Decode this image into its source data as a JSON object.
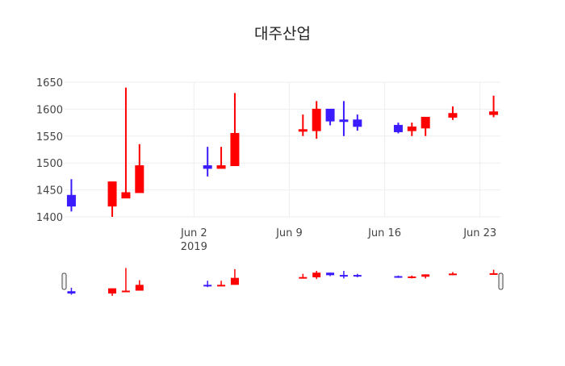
{
  "chart_data": {
    "type": "candlestick",
    "title": "대주산업",
    "colors": {
      "increasing": "#ff0000",
      "decreasing": "#3b1cff"
    },
    "x_tick_labels": [
      {
        "date": "2019-06-02",
        "label": "Jun 2",
        "sublabel": "2019"
      },
      {
        "date": "2019-06-09",
        "label": "Jun 9",
        "sublabel": ""
      },
      {
        "date": "2019-06-16",
        "label": "Jun 16",
        "sublabel": ""
      },
      {
        "date": "2019-06-23",
        "label": "Jun 23",
        "sublabel": ""
      }
    ],
    "x_range": [
      "2019-05-23T12:00",
      "2019-06-24T12:00"
    ],
    "y_range": [
      1400,
      1650
    ],
    "y_ticks": [
      1400,
      1450,
      1500,
      1550,
      1600,
      1650
    ],
    "grid": true,
    "rangeslider": true,
    "candles": [
      {
        "date": "2019-05-24",
        "open": 1440,
        "high": 1470,
        "low": 1410,
        "close": 1420
      },
      {
        "date": "2019-05-27",
        "open": 1420,
        "high": 1465,
        "low": 1400,
        "close": 1465
      },
      {
        "date": "2019-05-28",
        "open": 1435,
        "high": 1640,
        "low": 1435,
        "close": 1445
      },
      {
        "date": "2019-05-29",
        "open": 1445,
        "high": 1535,
        "low": 1445,
        "close": 1495
      },
      {
        "date": "2019-06-03",
        "open": 1495,
        "high": 1530,
        "low": 1475,
        "close": 1490
      },
      {
        "date": "2019-06-04",
        "open": 1490,
        "high": 1530,
        "low": 1490,
        "close": 1495
      },
      {
        "date": "2019-06-05",
        "open": 1495,
        "high": 1630,
        "low": 1495,
        "close": 1555
      },
      {
        "date": "2019-06-10",
        "open": 1560,
        "high": 1590,
        "low": 1550,
        "close": 1562
      },
      {
        "date": "2019-06-11",
        "open": 1560,
        "high": 1615,
        "low": 1545,
        "close": 1600
      },
      {
        "date": "2019-06-12",
        "open": 1600,
        "high": 1600,
        "low": 1570,
        "close": 1578
      },
      {
        "date": "2019-06-13",
        "open": 1580,
        "high": 1615,
        "low": 1550,
        "close": 1578
      },
      {
        "date": "2019-06-14",
        "open": 1580,
        "high": 1590,
        "low": 1560,
        "close": 1568
      },
      {
        "date": "2019-06-17",
        "open": 1570,
        "high": 1575,
        "low": 1555,
        "close": 1558
      },
      {
        "date": "2019-06-18",
        "open": 1560,
        "high": 1575,
        "low": 1550,
        "close": 1567
      },
      {
        "date": "2019-06-19",
        "open": 1565,
        "high": 1585,
        "low": 1550,
        "close": 1585
      },
      {
        "date": "2019-06-21",
        "open": 1585,
        "high": 1605,
        "low": 1580,
        "close": 1592
      },
      {
        "date": "2019-06-24",
        "open": 1590,
        "high": 1625,
        "low": 1585,
        "close": 1595
      }
    ]
  }
}
